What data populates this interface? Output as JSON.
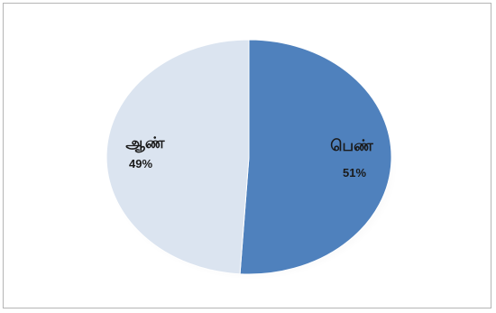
{
  "chart_data": {
    "type": "pie",
    "title": "",
    "slices": [
      {
        "label": "பெண்",
        "value": 51,
        "value_label": "51%",
        "color": "#4f81bd"
      },
      {
        "label": "ஆண்",
        "value": 49,
        "value_label": "49%",
        "color": "#dbe4f0"
      }
    ],
    "legend": "none",
    "style": "3d-perspective"
  }
}
